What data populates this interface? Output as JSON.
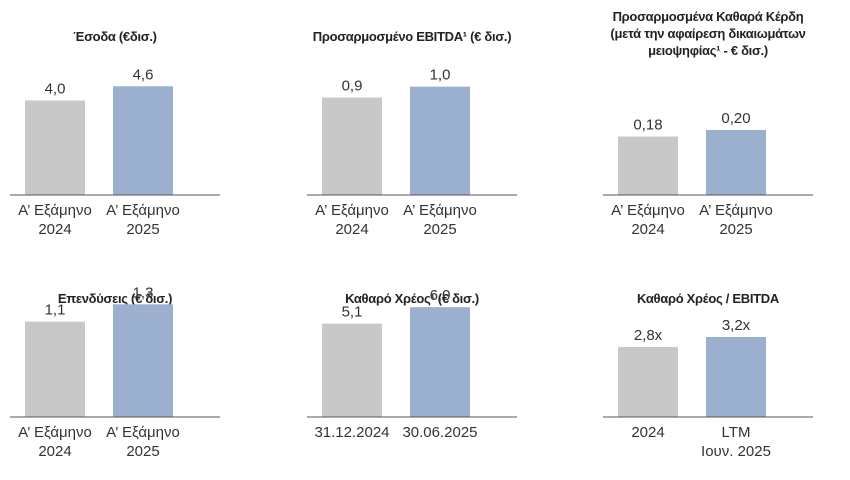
{
  "chart_data": [
    {
      "type": "bar",
      "title": "Έσοδα (€δισ.)",
      "categories": [
        [
          "Α’ Εξάμηνο",
          "2024"
        ],
        [
          "Α’ Εξάμηνο",
          "2025"
        ]
      ],
      "values": [
        4.0,
        4.6
      ],
      "value_labels": [
        "4,0",
        "4,6"
      ],
      "colors": [
        "#c8c8c8",
        "#9bb0cf"
      ],
      "ylim": [
        0,
        5.5
      ]
    },
    {
      "type": "bar",
      "title": "Προσαρμοσμένο EBITDA¹ (€ δισ.)",
      "categories": [
        [
          "Α’ Εξάμηνο",
          "2024"
        ],
        [
          "Α’ Εξάμηνο",
          "2025"
        ]
      ],
      "values": [
        0.9,
        1.0
      ],
      "value_labels": [
        "0,9",
        "1,0"
      ],
      "colors": [
        "#c8c8c8",
        "#9bb0cf"
      ],
      "ylim": [
        0,
        1.2
      ]
    },
    {
      "type": "bar",
      "title": "Προσαρμοσμένα Καθαρά Κέρδη (μετά την αφαίρεση δικαιωμάτων μειοψηφίας¹ - € δισ.)",
      "categories": [
        [
          "Α’ Εξάμηνο",
          "2024"
        ],
        [
          "Α’ Εξάμηνο",
          "2025"
        ]
      ],
      "values": [
        0.18,
        0.2
      ],
      "value_labels": [
        "0,18",
        "0,20"
      ],
      "colors": [
        "#c8c8c8",
        "#9bb0cf"
      ],
      "ylim": [
        0,
        0.4
      ]
    },
    {
      "type": "bar",
      "title": "Επενδύσεις (€ δισ.)",
      "categories": [
        [
          "Α’ Εξάμηνο",
          "2024"
        ],
        [
          "Α’ Εξάμηνο",
          "2025"
        ]
      ],
      "values": [
        1.1,
        1.3
      ],
      "value_labels": [
        "1,1",
        "1,3"
      ],
      "colors": [
        "#c8c8c8",
        "#9bb0cf"
      ],
      "ylim": [
        0,
        1.5
      ]
    },
    {
      "type": "bar",
      "title": "Καθαρό Χρέος¹ (€ δισ.)",
      "categories": [
        [
          "31.12.2024"
        ],
        [
          "30.06.2025"
        ]
      ],
      "values": [
        5.1,
        6.0
      ],
      "value_labels": [
        "5,1",
        "6,0"
      ],
      "colors": [
        "#c8c8c8",
        "#9bb0cf"
      ],
      "ylim": [
        0,
        7.1
      ]
    },
    {
      "type": "bar",
      "title": "Καθαρό Χρέος / EBITDA",
      "categories": [
        [
          "2024"
        ],
        [
          "LTM",
          "Ιουν. 2025"
        ]
      ],
      "values": [
        2.8,
        3.2
      ],
      "value_labels": [
        "2,8x",
        "3,2x"
      ],
      "colors": [
        "#c8c8c8",
        "#9bb0cf"
      ],
      "ylim": [
        0,
        5.2
      ]
    }
  ]
}
